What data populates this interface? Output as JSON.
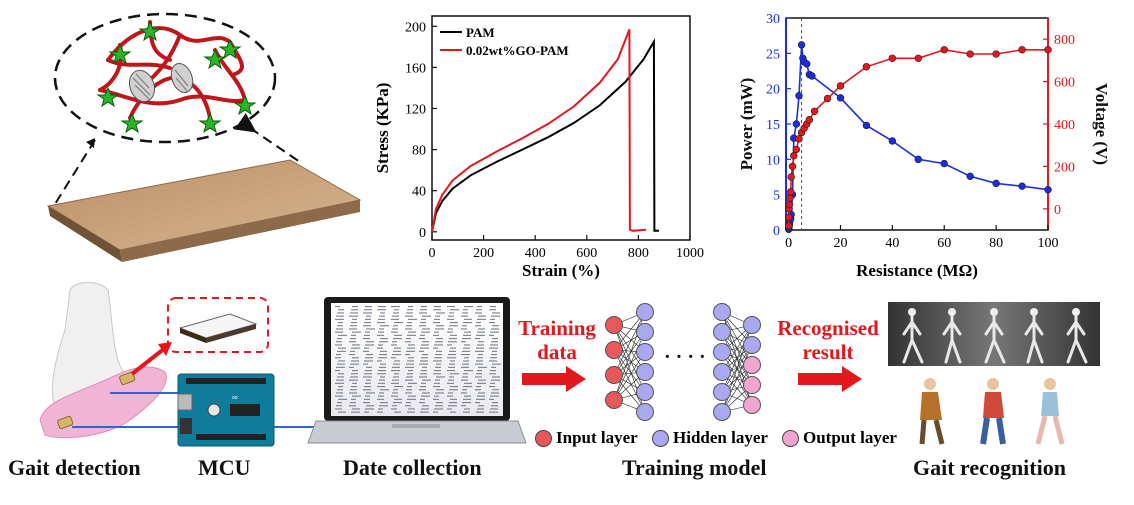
{
  "colors": {
    "accent_red": "#e3171c",
    "power_blue": "#1a2ee0",
    "input_node": "#e8585a",
    "hidden_node": "#a9a9f2",
    "output_node": "#f2a6cf",
    "plank": "#c59f7a"
  },
  "labels": {
    "gait_detection": "Gait detection",
    "mcu": "MCU",
    "date_collection": "Date collection",
    "training_model": "Training model",
    "gait_recognition": "Gait recognition",
    "training_data_1": "Training",
    "training_data_2": "data",
    "recognised_1": "Recognised",
    "recognised_2": "result",
    "input_layer": "Input layer",
    "hidden_layer": "Hidden layer",
    "output_layer": "Output layer",
    "dots": "· · · ·"
  },
  "chart_data": [
    {
      "type": "line",
      "xlabel": "Strain (%)",
      "ylabel": "Stress (KPa)",
      "xlim": [
        0,
        1000
      ],
      "ylim": [
        -8,
        210
      ],
      "xticks": [
        0,
        200,
        400,
        600,
        800,
        1000
      ],
      "yticks": [
        0,
        40,
        80,
        120,
        160,
        200
      ],
      "legend": "top-left",
      "series": [
        {
          "name": "PAM",
          "color": "#000000",
          "x": [
            0,
            15,
            40,
            80,
            150,
            250,
            350,
            450,
            550,
            650,
            750,
            820,
            860,
            862,
            880
          ],
          "y": [
            0,
            18,
            30,
            42,
            55,
            68,
            80,
            92,
            106,
            123,
            146,
            168,
            185,
            1,
            1
          ]
        },
        {
          "name": "0.02wt%GO-PAM",
          "color": "#e3171c",
          "x": [
            0,
            15,
            40,
            80,
            150,
            250,
            350,
            450,
            550,
            650,
            720,
            765,
            767,
            780,
            830
          ],
          "y": [
            0,
            22,
            36,
            50,
            64,
            78,
            91,
            105,
            122,
            145,
            168,
            197,
            2,
            1,
            2
          ]
        }
      ]
    },
    {
      "type": "scatter",
      "xlabel": "Resistance (MΩ)",
      "ylabel": "Power (mW)",
      "ylabel_right": "Voltage (V)",
      "xlim": [
        -1,
        100
      ],
      "ylim": [
        0,
        30
      ],
      "ylim_right": [
        -100,
        900
      ],
      "xticks": [
        0,
        20,
        40,
        60,
        80,
        100
      ],
      "yticks": [
        0,
        5,
        10,
        15,
        20,
        25,
        30
      ],
      "yticks_right": [
        0,
        200,
        400,
        600,
        800
      ],
      "vline_x": 5,
      "series": [
        {
          "name": "Power",
          "axis": "left",
          "color": "#1a2ee0",
          "x": [
            0.05,
            0.1,
            0.2,
            0.3,
            0.5,
            0.8,
            1,
            1.5,
            2,
            3,
            4,
            5,
            5.5,
            6,
            7,
            8,
            9,
            20,
            30,
            40,
            50,
            60,
            70,
            80,
            90,
            100
          ],
          "y": [
            0.1,
            0.2,
            0.5,
            0.8,
            1.2,
            1.6,
            2.2,
            5,
            13,
            15,
            19,
            26.2,
            24.3,
            23.8,
            23.5,
            22,
            21.8,
            18.7,
            14.8,
            12.6,
            10,
            9.4,
            7.6,
            6.6,
            6.2,
            5.7
          ]
        },
        {
          "name": "Voltage",
          "axis": "right",
          "color": "#e3171c",
          "x": [
            0.05,
            0.1,
            0.2,
            0.3,
            0.5,
            0.8,
            1,
            1.5,
            2,
            3,
            4,
            5,
            6,
            7,
            8,
            10,
            15,
            20,
            30,
            40,
            50,
            60,
            70,
            80,
            90,
            100
          ],
          "y": [
            -80,
            -40,
            0,
            20,
            50,
            80,
            150,
            200,
            250,
            280,
            330,
            360,
            380,
            400,
            420,
            460,
            520,
            580,
            670,
            710,
            710,
            750,
            730,
            730,
            750,
            750
          ]
        }
      ]
    }
  ]
}
